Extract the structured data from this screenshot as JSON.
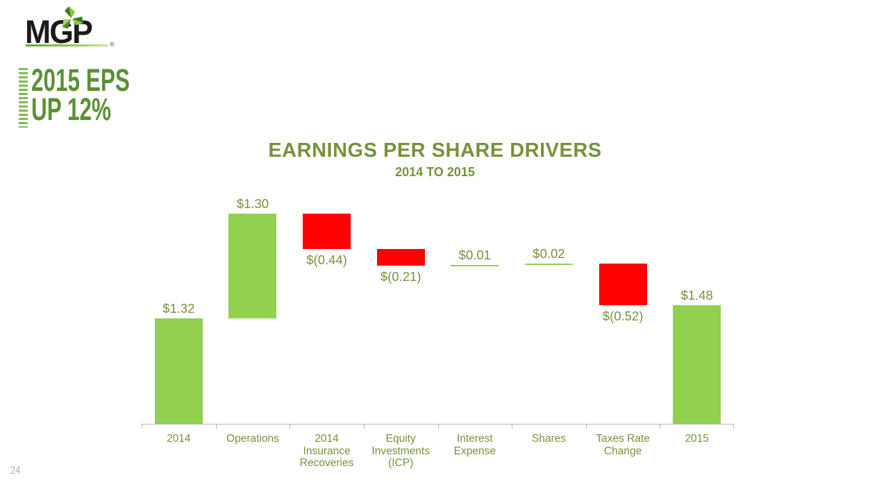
{
  "slide": {
    "logo": {
      "text": "MGP",
      "registered": "®",
      "leaf_icon": "mgp-leaf-icon"
    },
    "heading": {
      "line1": "2015 EPS",
      "line2": "UP 12%"
    },
    "page_number": "24"
  },
  "chart_data": {
    "type": "bar",
    "subtype": "waterfall",
    "title": "EARNINGS PER SHARE DRIVERS",
    "subtitle": "2014 TO 2015",
    "xlabel": "",
    "ylabel": "",
    "ylim": [
      0,
      2.62
    ],
    "grid": false,
    "legend": "none",
    "start_value": 1.32,
    "end_value": 1.48,
    "colors": {
      "increase": "#92d050",
      "decrease": "#ff0000",
      "axis": "#b3b3b3",
      "label_text": "#76923c",
      "title_text": "#76923c"
    },
    "bars": [
      {
        "category_lines": [
          "2014"
        ],
        "value": 1.32,
        "kind": "total",
        "label": "$1.32",
        "label_position": "above",
        "color": "#92d050"
      },
      {
        "category_lines": [
          "Operations"
        ],
        "value": 1.3,
        "kind": "delta",
        "label": "$1.30",
        "label_position": "above",
        "color": "#92d050"
      },
      {
        "category_lines": [
          "2014",
          "Insurance",
          "Recoveries"
        ],
        "value": -0.44,
        "kind": "delta",
        "label": "$(0.44)",
        "label_position": "below",
        "color": "#ff0000"
      },
      {
        "category_lines": [
          "Equity",
          "Investments",
          "(ICP)"
        ],
        "value": -0.21,
        "kind": "delta",
        "label": "$(0.21)",
        "label_position": "below",
        "color": "#ff0000"
      },
      {
        "category_lines": [
          "Interest",
          "Expense"
        ],
        "value": 0.01,
        "kind": "delta",
        "label": "$0.01",
        "label_position": "above",
        "color": "#92d050"
      },
      {
        "category_lines": [
          "Shares"
        ],
        "value": 0.02,
        "kind": "delta",
        "label": "$0.02",
        "label_position": "above",
        "color": "#92d050"
      },
      {
        "category_lines": [
          "Taxes Rate",
          "Change"
        ],
        "value": -0.52,
        "kind": "delta",
        "label": "$(0.52)",
        "label_position": "below",
        "color": "#ff0000"
      },
      {
        "category_lines": [
          "2015"
        ],
        "value": 1.48,
        "kind": "total",
        "label": "$1.48",
        "label_position": "above",
        "color": "#92d050"
      }
    ]
  }
}
